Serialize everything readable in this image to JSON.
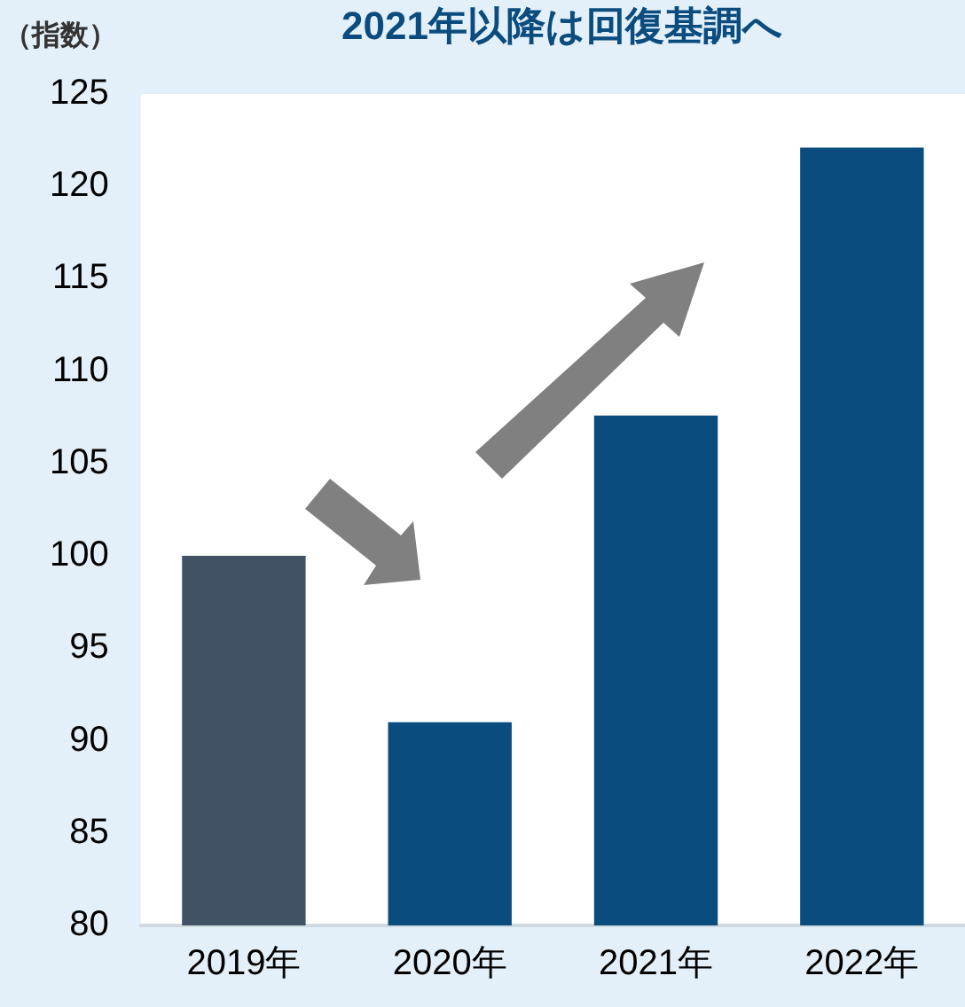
{
  "chart_data": {
    "type": "bar",
    "title": "2021年以降は回復基調へ",
    "ylabel": "（指数）",
    "categories": [
      "2019年",
      "2020年",
      "2021年",
      "2022年"
    ],
    "values": [
      100,
      91,
      107.6,
      122.1
    ],
    "colors": [
      "#405264",
      "#0b4c7f",
      "#0b4c7f",
      "#0b4c7f"
    ],
    "ylim": [
      80,
      125
    ],
    "yticks": [
      80,
      85,
      90,
      95,
      100,
      105,
      110,
      115,
      120,
      125
    ],
    "grid": false,
    "legend": false
  }
}
